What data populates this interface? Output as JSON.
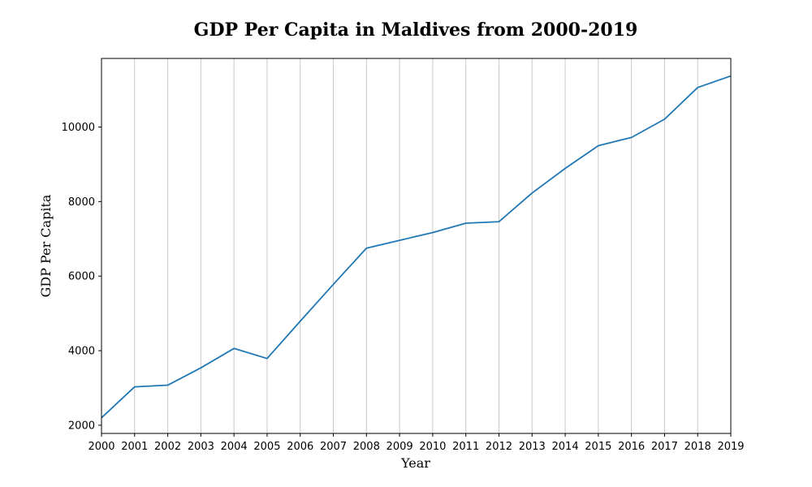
{
  "chart_data": {
    "type": "line",
    "title": "GDP Per Capita in Maldives from 2000-2019",
    "xlabel": "Year",
    "ylabel": "GDP Per Capita",
    "x": [
      "2000",
      "2001",
      "2002",
      "2003",
      "2004",
      "2005",
      "2006",
      "2007",
      "2008",
      "2009",
      "2010",
      "2011",
      "2012",
      "2013",
      "2014",
      "2015",
      "2016",
      "2017",
      "2018",
      "2019"
    ],
    "series": [
      {
        "values": [
          2200,
          3030,
          3075,
          3540,
          4060,
          3790,
          4790,
          5780,
          6750,
          6960,
          7170,
          7420,
          7460,
          8230,
          8890,
          9500,
          9720,
          10210,
          11060,
          11370
        ]
      }
    ],
    "yticks": [
      2000,
      4000,
      6000,
      8000,
      10000
    ],
    "ylim": [
      1780,
      11840
    ],
    "grid": "vertical",
    "line_color": "#1f77b4"
  }
}
